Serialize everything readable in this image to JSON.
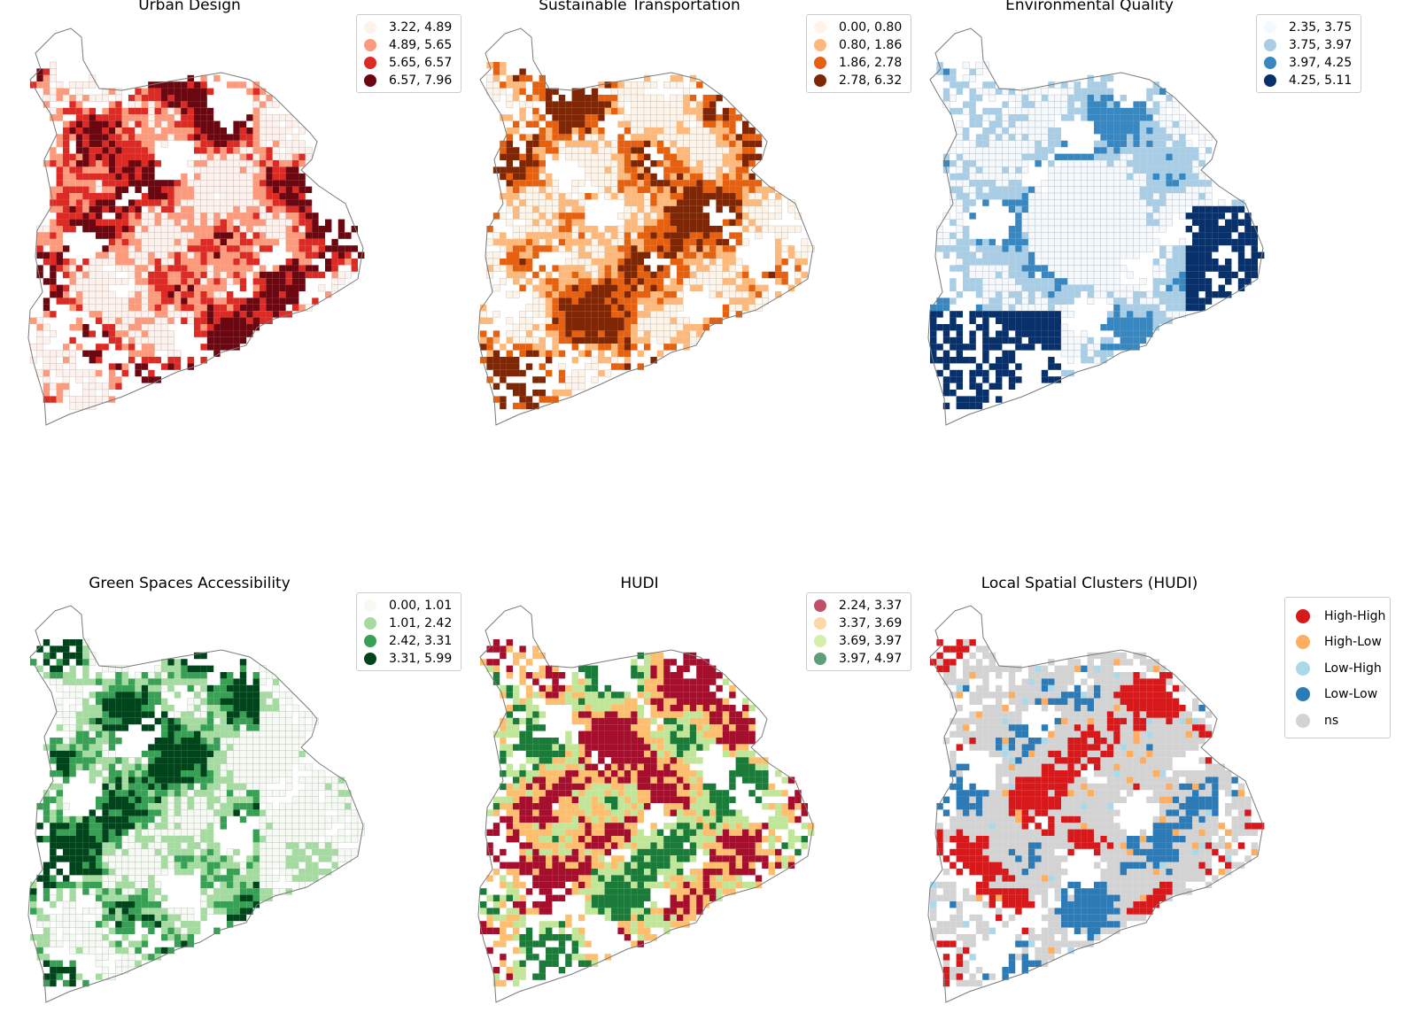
{
  "panels": [
    {
      "title": "Urban Design",
      "seed": 11,
      "pattern": "urban",
      "legend": [
        {
          "label": "3.22, 4.89",
          "color": "#fff1ec"
        },
        {
          "label": "4.89, 5.65",
          "color": "#fb9a7d"
        },
        {
          "label": "5.65, 6.57",
          "color": "#dc2a25"
        },
        {
          "label": "6.57, 7.96",
          "color": "#6b0711"
        }
      ]
    },
    {
      "title": "Sustainable Transportation",
      "seed": 23,
      "pattern": "transport",
      "legend": [
        {
          "label": "0.00, 0.80",
          "color": "#fff4e8"
        },
        {
          "label": "0.80, 1.86",
          "color": "#fdb87b"
        },
        {
          "label": "1.86, 2.78",
          "color": "#e5600f"
        },
        {
          "label": "2.78, 6.32",
          "color": "#7f2704"
        }
      ]
    },
    {
      "title": "Environmental Quality",
      "seed": 37,
      "pattern": "environment",
      "legend": [
        {
          "label": "2.35, 3.75",
          "color": "#f4f9fe"
        },
        {
          "label": "3.75, 3.97",
          "color": "#a9cde4"
        },
        {
          "label": "3.97, 4.25",
          "color": "#3987c0"
        },
        {
          "label": "4.25, 5.11",
          "color": "#08306b"
        }
      ]
    },
    {
      "title": "Green Spaces Accessibility",
      "seed": 41,
      "pattern": "green",
      "legend": [
        {
          "label": "0.00, 1.01",
          "color": "#f5fbf3"
        },
        {
          "label": "1.01, 2.42",
          "color": "#a5dba0"
        },
        {
          "label": "2.42, 3.31",
          "color": "#38a055"
        },
        {
          "label": "3.31, 5.99",
          "color": "#00441b"
        }
      ]
    },
    {
      "title": "HUDI",
      "seed": 53,
      "pattern": "hudi",
      "legend": [
        {
          "label": "2.24, 3.37",
          "color": "#c0506a"
        },
        {
          "label": "3.37, 3.69",
          "color": "#fbd8a6"
        },
        {
          "label": "3.69, 3.97",
          "color": "#d5eeaa"
        },
        {
          "label": "3.97, 4.97",
          "color": "#5e9e78"
        }
      ]
    },
    {
      "title": "Local Spatial Clusters (HUDI)",
      "seed": 67,
      "pattern": "clusters",
      "legend": [
        {
          "label": "High-High",
          "color": "#d7191c"
        },
        {
          "label": "High-Low",
          "color": "#fdae61"
        },
        {
          "label": "Low-High",
          "color": "#abd9e9"
        },
        {
          "label": "Low-Low",
          "color": "#2c7bb6"
        },
        {
          "label": "ns",
          "color": "#d3d3d3"
        }
      ]
    }
  ],
  "cell_colors": {
    "urban": [
      "#fff1ec",
      "#fb9a7d",
      "#dc2a25",
      "#6b0711"
    ],
    "transport": [
      "#fff4e8",
      "#fdb87b",
      "#e5600f",
      "#7f2704"
    ],
    "environment": [
      "#f4f9fe",
      "#a9cde4",
      "#3987c0",
      "#08306b"
    ],
    "green": [
      "#f5fbf3",
      "#a5dba0",
      "#38a055",
      "#00441b"
    ],
    "hudi": [
      "#a50f2d",
      "#fdbf6f",
      "#c2e699",
      "#1b7c3a"
    ],
    "clusters": [
      "#d7191c",
      "#fdae61",
      "#abd9e9",
      "#2c7bb6",
      "#d3d3d3"
    ]
  },
  "outline_color": "#7a7a7a",
  "cell_edge_color": "#bdbdbd"
}
